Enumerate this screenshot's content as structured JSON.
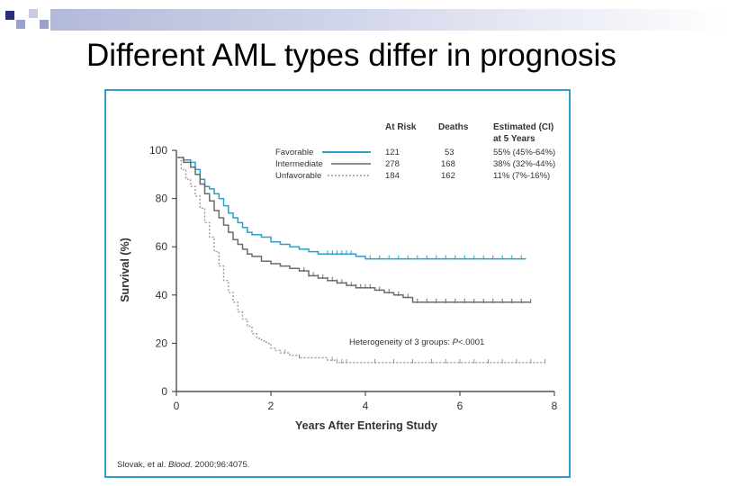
{
  "slide": {
    "title": "Different AML types differ in prognosis"
  },
  "colors": {
    "deco_square_dark": "#2b2f7a",
    "deco_square_light": "#9aa1cc",
    "frame": "#2f9fca",
    "favorable": "#2f9fca",
    "intermediate": "#6b6b6b",
    "unfavorable": "#9a9a9a",
    "text": "#333333"
  },
  "figure": {
    "citation_prefix": "Slovak, et al. ",
    "citation_journal": "Blood",
    "citation_suffix": ". 2000;96:4075.",
    "annotation_text": "Heterogeneity of 3 groups: ",
    "annotation_p": "P",
    "annotation_value": "<.0001"
  },
  "chart_data": {
    "type": "line",
    "title": "",
    "xlabel": "Years After Entering Study",
    "ylabel": "Survival (%)",
    "xlim": [
      0,
      8
    ],
    "ylim": [
      0,
      100
    ],
    "x_ticks": [
      0,
      2,
      4,
      6,
      8
    ],
    "y_ticks": [
      0,
      20,
      40,
      60,
      80,
      100
    ],
    "x_tick_labels": [
      "0",
      "2",
      "4",
      "6",
      "8"
    ],
    "y_tick_labels": [
      "0",
      "20",
      "40",
      "60",
      "80",
      "100"
    ],
    "grid": false,
    "legend_position": "top",
    "legend_headers": {
      "at_risk": "At Risk",
      "deaths": "Deaths",
      "estimated": "Estimated (CI)",
      "estimated_line2": "at 5 Years"
    },
    "series": [
      {
        "name": "Favorable",
        "style": "solid",
        "at_risk": "121",
        "deaths": "53",
        "estimate": "55% (45%-64%)",
        "points": [
          [
            0,
            97
          ],
          [
            0.15,
            96
          ],
          [
            0.3,
            95
          ],
          [
            0.4,
            92
          ],
          [
            0.5,
            88
          ],
          [
            0.6,
            85
          ],
          [
            0.7,
            84
          ],
          [
            0.8,
            82
          ],
          [
            0.9,
            80
          ],
          [
            1.0,
            77
          ],
          [
            1.1,
            74
          ],
          [
            1.2,
            72
          ],
          [
            1.3,
            70
          ],
          [
            1.4,
            68
          ],
          [
            1.5,
            66
          ],
          [
            1.6,
            65
          ],
          [
            1.8,
            64
          ],
          [
            2.0,
            62
          ],
          [
            2.2,
            61
          ],
          [
            2.4,
            60
          ],
          [
            2.6,
            59
          ],
          [
            2.8,
            58
          ],
          [
            3.0,
            57
          ],
          [
            3.2,
            57
          ],
          [
            3.5,
            57
          ],
          [
            3.8,
            56
          ],
          [
            4.0,
            55
          ],
          [
            5.0,
            55
          ],
          [
            6.0,
            55
          ],
          [
            7.0,
            55
          ],
          [
            7.4,
            55
          ]
        ],
        "censor_x": [
          3.2,
          3.3,
          3.4,
          3.5,
          3.6,
          3.7,
          4.1,
          4.3,
          4.5,
          4.7,
          4.9,
          5.1,
          5.3,
          5.5,
          5.7,
          5.9,
          6.1,
          6.3,
          6.5,
          6.7,
          6.9,
          7.1,
          7.3
        ]
      },
      {
        "name": "Intermediate",
        "style": "solid",
        "at_risk": "278",
        "deaths": "168",
        "estimate": "38% (32%-44%)",
        "points": [
          [
            0,
            97
          ],
          [
            0.15,
            95
          ],
          [
            0.3,
            93
          ],
          [
            0.4,
            90
          ],
          [
            0.5,
            86
          ],
          [
            0.6,
            82
          ],
          [
            0.7,
            79
          ],
          [
            0.8,
            75
          ],
          [
            0.9,
            72
          ],
          [
            1.0,
            69
          ],
          [
            1.1,
            66
          ],
          [
            1.2,
            63
          ],
          [
            1.3,
            61
          ],
          [
            1.4,
            59
          ],
          [
            1.5,
            57
          ],
          [
            1.6,
            56
          ],
          [
            1.8,
            54
          ],
          [
            2.0,
            53
          ],
          [
            2.2,
            52
          ],
          [
            2.4,
            51
          ],
          [
            2.6,
            50
          ],
          [
            2.8,
            48
          ],
          [
            3.0,
            47
          ],
          [
            3.2,
            46
          ],
          [
            3.4,
            45
          ],
          [
            3.6,
            44
          ],
          [
            3.8,
            43
          ],
          [
            4.0,
            43
          ],
          [
            4.2,
            42
          ],
          [
            4.4,
            41
          ],
          [
            4.6,
            40
          ],
          [
            4.8,
            39
          ],
          [
            5.0,
            37
          ],
          [
            6.0,
            37
          ],
          [
            7.0,
            37
          ],
          [
            7.5,
            37
          ]
        ],
        "censor_x": [
          2.7,
          2.8,
          2.9,
          3.0,
          3.1,
          3.2,
          3.3,
          3.4,
          3.5,
          3.6,
          3.7,
          3.8,
          3.9,
          4.0,
          4.1,
          4.3,
          4.5,
          4.7,
          4.9,
          5.1,
          5.3,
          5.5,
          5.7,
          5.9,
          6.1,
          6.3,
          6.5,
          6.7,
          6.9,
          7.1,
          7.3,
          7.5
        ]
      },
      {
        "name": "Unfavorable",
        "style": "dotted",
        "at_risk": "184",
        "deaths": "162",
        "estimate": "11% (7%-16%)",
        "points": [
          [
            0,
            97
          ],
          [
            0.1,
            92
          ],
          [
            0.2,
            88
          ],
          [
            0.3,
            85
          ],
          [
            0.4,
            81
          ],
          [
            0.5,
            76
          ],
          [
            0.6,
            70
          ],
          [
            0.7,
            64
          ],
          [
            0.8,
            58
          ],
          [
            0.9,
            52
          ],
          [
            1.0,
            46
          ],
          [
            1.1,
            41
          ],
          [
            1.2,
            37
          ],
          [
            1.3,
            33
          ],
          [
            1.4,
            30
          ],
          [
            1.5,
            27
          ],
          [
            1.6,
            24
          ],
          [
            1.7,
            22
          ],
          [
            1.8,
            21
          ],
          [
            1.9,
            20
          ],
          [
            2.0,
            18
          ],
          [
            2.1,
            17
          ],
          [
            2.2,
            16
          ],
          [
            2.4,
            15
          ],
          [
            2.6,
            14
          ],
          [
            2.8,
            14
          ],
          [
            3.0,
            14
          ],
          [
            3.2,
            13
          ],
          [
            3.4,
            12
          ],
          [
            3.6,
            12
          ],
          [
            4.0,
            12
          ],
          [
            5.0,
            12
          ],
          [
            6.0,
            12
          ],
          [
            7.0,
            12
          ],
          [
            7.8,
            12
          ]
        ],
        "censor_x": [
          2.3,
          2.6,
          3.3,
          3.4,
          3.5,
          3.6,
          4.2,
          4.6,
          5.0,
          5.4,
          5.7,
          6.0,
          6.3,
          6.6,
          6.9,
          7.2,
          7.5,
          7.8
        ]
      }
    ]
  }
}
